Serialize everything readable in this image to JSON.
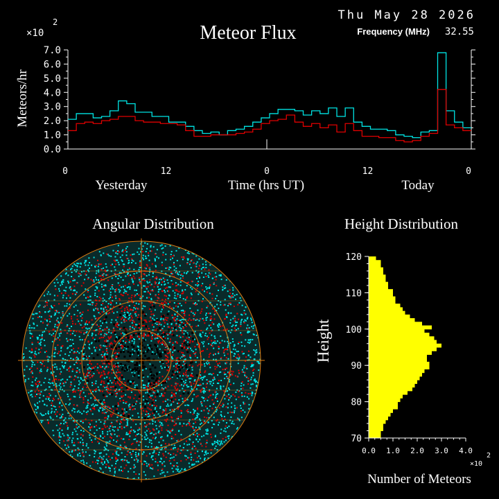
{
  "header": {
    "title": "Meteor Flux",
    "date": "Thu May 28 2026",
    "frequency_label": "Frequency (MHz)",
    "frequency_value": "32.55",
    "scale_note": "×10",
    "scale_exp": "2"
  },
  "chart_data": [
    {
      "type": "line",
      "title": "Meteor Flux",
      "xlabel": "Time (hrs UT)",
      "ylabel": "Meteors/hr",
      "y_multiplier": "×10^2",
      "ylim": [
        0,
        7
      ],
      "yticks": [
        "0.0",
        "1.0",
        "2.0",
        "3.0",
        "4.0",
        "5.0",
        "6.0",
        "7.0"
      ],
      "xticks": [
        "0",
        "12",
        "0",
        "12",
        "0"
      ],
      "day_labels": [
        "Yesterday",
        "Today"
      ],
      "x_bins_hours": [
        0,
        1,
        2,
        3,
        4,
        5,
        6,
        7,
        8,
        9,
        10,
        11,
        12,
        13,
        14,
        15,
        16,
        17,
        18,
        19,
        20,
        21,
        22,
        23,
        24,
        25,
        26,
        27,
        28,
        29,
        30,
        31,
        32,
        33,
        34,
        35,
        36,
        37,
        38,
        39,
        40,
        41,
        42,
        43,
        44,
        45,
        46,
        47
      ],
      "series": [
        {
          "color": "#00e5e5",
          "values": [
            2.1,
            2.5,
            2.5,
            2.2,
            2.3,
            2.7,
            3.4,
            3.2,
            2.6,
            2.6,
            2.3,
            2.3,
            1.9,
            1.9,
            1.6,
            1.3,
            1.1,
            1.2,
            1.0,
            1.3,
            1.4,
            1.6,
            1.9,
            2.2,
            2.5,
            2.8,
            2.8,
            2.7,
            2.4,
            2.7,
            2.5,
            2.9,
            2.3,
            2.9,
            1.9,
            1.6,
            1.4,
            1.4,
            1.3,
            1.0,
            0.9,
            0.8,
            1.2,
            1.3,
            6.8,
            2.7,
            1.9,
            1.5
          ]
        },
        {
          "color": "#e00000",
          "values": [
            1.3,
            1.8,
            1.9,
            1.8,
            2.0,
            2.1,
            2.3,
            2.3,
            2.0,
            1.9,
            1.9,
            1.8,
            1.8,
            1.7,
            1.3,
            0.9,
            0.9,
            1.0,
            1.0,
            1.0,
            1.1,
            1.2,
            1.4,
            1.8,
            2.0,
            2.1,
            2.4,
            1.9,
            1.6,
            1.8,
            1.5,
            1.7,
            1.2,
            1.8,
            1.3,
            0.9,
            0.9,
            0.8,
            0.8,
            0.6,
            0.5,
            0.6,
            0.9,
            1.1,
            4.2,
            1.7,
            1.5,
            1.3
          ]
        }
      ]
    },
    {
      "type": "scatter",
      "title": "Angular Distribution",
      "series": [
        {
          "name": "",
          "color": "#00e5e5"
        },
        {
          "name": "",
          "color": "#e00000"
        }
      ],
      "grid_color": "#e07a10"
    },
    {
      "type": "bar",
      "orientation": "horizontal",
      "title": "Height Distribution",
      "xlabel": "Number of Meteors",
      "ylabel": "Height",
      "x_multiplier": "×10^2",
      "xlim": [
        0,
        4
      ],
      "xticks": [
        "0.0",
        "1.0",
        "2.0",
        "3.0",
        "4.0"
      ],
      "yticks": [
        "70",
        "80",
        "90",
        "100",
        "110",
        "120"
      ],
      "ylim": [
        70,
        120
      ],
      "heights": [
        120,
        119,
        118,
        117,
        116,
        115,
        114,
        113,
        112,
        111,
        110,
        109,
        108,
        107,
        106,
        105,
        104,
        103,
        102,
        101,
        100,
        99,
        98,
        97,
        96,
        95,
        94,
        93,
        92,
        91,
        90,
        89,
        88,
        87,
        86,
        85,
        84,
        83,
        82,
        81,
        80,
        79,
        78,
        77,
        76,
        75,
        74,
        73,
        72,
        71
      ],
      "values": [
        0.3,
        0.5,
        0.5,
        0.6,
        0.6,
        0.7,
        0.7,
        0.8,
        0.8,
        1.0,
        1.0,
        1.1,
        1.1,
        1.3,
        1.4,
        1.5,
        1.7,
        1.9,
        2.2,
        2.6,
        2.3,
        2.5,
        2.7,
        2.8,
        3.0,
        2.8,
        2.6,
        2.4,
        2.4,
        2.5,
        2.5,
        2.3,
        2.2,
        2.1,
        2.0,
        1.9,
        1.8,
        1.6,
        1.4,
        1.3,
        1.2,
        1.2,
        1.0,
        0.9,
        0.8,
        0.7,
        0.6,
        0.6,
        0.5,
        0.5
      ],
      "color": "#ffff00"
    }
  ]
}
